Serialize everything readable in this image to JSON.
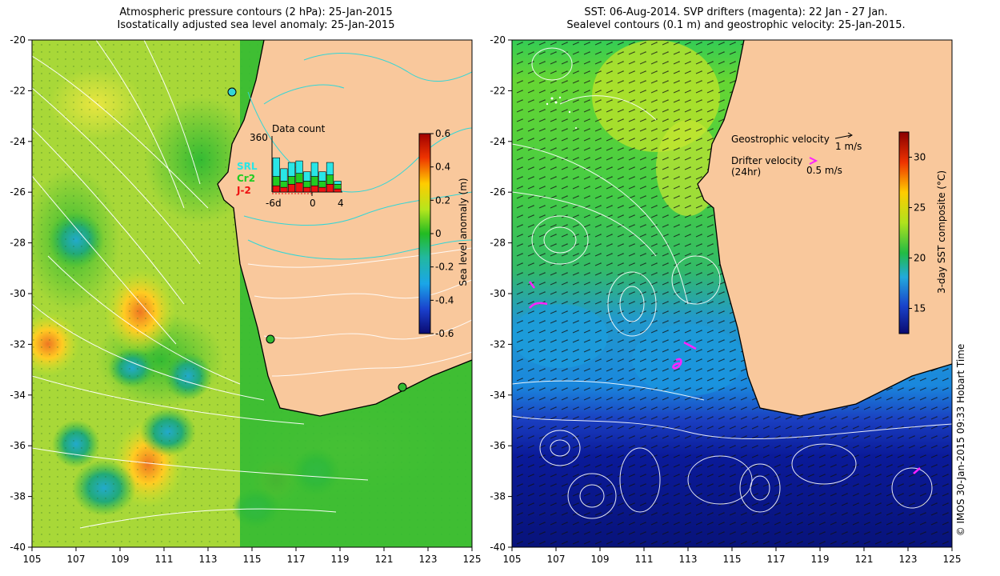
{
  "left_panel": {
    "title_line1": "Atmospheric pressure contours (2 hPa): 25-Jan-2015",
    "title_line2": "Isostatically adjusted sea level anomaly: 25-Jan-2015",
    "colorbar": {
      "label": "Sea level anomaly (m)",
      "ticks": [
        "0.6",
        "0.4",
        "0.2",
        "0",
        "-0.2",
        "-0.4",
        "-0.6"
      ]
    },
    "inset": {
      "title": "Data count",
      "ymax_label": "360",
      "x_labels": [
        "-6d",
        "0",
        "4"
      ],
      "legend": [
        {
          "label": "SRL",
          "color": "#29e6e6"
        },
        {
          "label": "Cr2",
          "color": "#22cc22"
        },
        {
          "label": "J-2",
          "color": "#ee1111"
        }
      ],
      "bars": [
        {
          "j2": 40,
          "cr2": 60,
          "srl": 120
        },
        {
          "j2": 30,
          "cr2": 40,
          "srl": 80
        },
        {
          "j2": 50,
          "cr2": 50,
          "srl": 90
        },
        {
          "j2": 60,
          "cr2": 60,
          "srl": 80
        },
        {
          "j2": 30,
          "cr2": 40,
          "srl": 60
        },
        {
          "j2": 40,
          "cr2": 60,
          "srl": 90
        },
        {
          "j2": 30,
          "cr2": 40,
          "srl": 60
        },
        {
          "j2": 50,
          "cr2": 60,
          "srl": 80
        },
        {
          "j2": 20,
          "cr2": 30,
          "srl": 20
        }
      ]
    }
  },
  "right_panel": {
    "title_line1": "SST: 06-Aug-2014. SVP drifters (magenta): 22 Jan - 27 Jan.",
    "title_line2": "Sealevel contours (0.1 m) and geostrophic velocity: 25-Jan-2015.",
    "colorbar": {
      "label": "3-day SST composite (°C)",
      "ticks": [
        "30",
        "25",
        "20",
        "15"
      ]
    },
    "legend": {
      "geostrophic_label": "Geostrophic velocity",
      "geostrophic_value": "1 m/s",
      "drifter_label": "Drifter velocity",
      "drifter_sub": "(24hr)",
      "drifter_value": "0.5 m/s"
    }
  },
  "axes": {
    "x_ticks": [
      "105",
      "107",
      "109",
      "111",
      "113",
      "115",
      "117",
      "119",
      "121",
      "123",
      "125"
    ],
    "y_ticks": [
      "-20",
      "-22",
      "-24",
      "-26",
      "-28",
      "-30",
      "-32",
      "-34",
      "-36",
      "-38",
      "-40"
    ]
  },
  "colors": {
    "land": "#f9c89c",
    "contour_white": "#ffffff",
    "contour_cyan": "#33d6d6",
    "drifter": "#ff22ff",
    "coast": "#000000"
  },
  "copyright": "© IMOS 30-Jan-2015 09:33 Hobart Time"
}
